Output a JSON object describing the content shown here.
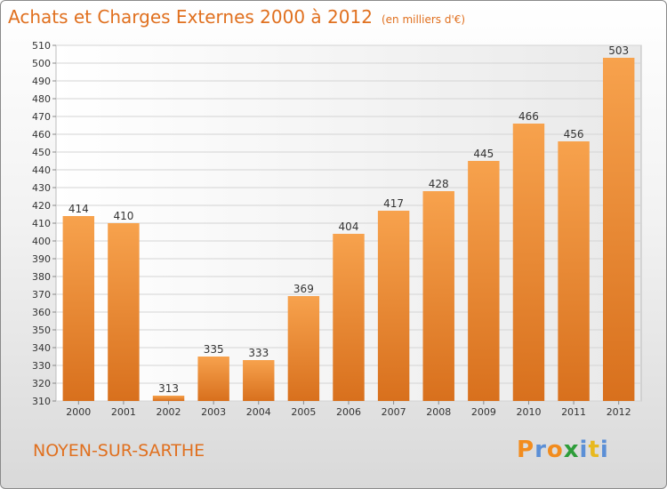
{
  "header": {
    "title": "Achats et Charges Externes 2000 à 2012",
    "units": "(en milliers d'€)"
  },
  "footer": {
    "city": "NOYEN-SUR-SARTHE",
    "logo": {
      "letters": [
        "P",
        "r",
        "o",
        "x",
        "i",
        "t",
        "i"
      ],
      "colors": [
        "#f28c1e",
        "#5b8fd6",
        "#f28c1e",
        "#2e9d3a",
        "#5b8fd6",
        "#e8b91e",
        "#5b8fd6"
      ]
    }
  },
  "chart_data": {
    "type": "bar",
    "categories": [
      "2000",
      "2001",
      "2002",
      "2003",
      "2004",
      "2005",
      "2006",
      "2007",
      "2008",
      "2009",
      "2010",
      "2011",
      "2012"
    ],
    "values": [
      414,
      410,
      313,
      335,
      333,
      369,
      404,
      417,
      428,
      445,
      466,
      456,
      503
    ],
    "ylim": [
      310,
      510
    ],
    "yticks": [
      310,
      320,
      330,
      340,
      350,
      360,
      370,
      380,
      390,
      400,
      410,
      420,
      430,
      440,
      450,
      460,
      470,
      480,
      490,
      500,
      510
    ],
    "grid": true,
    "bar_color": "#f0862a"
  }
}
